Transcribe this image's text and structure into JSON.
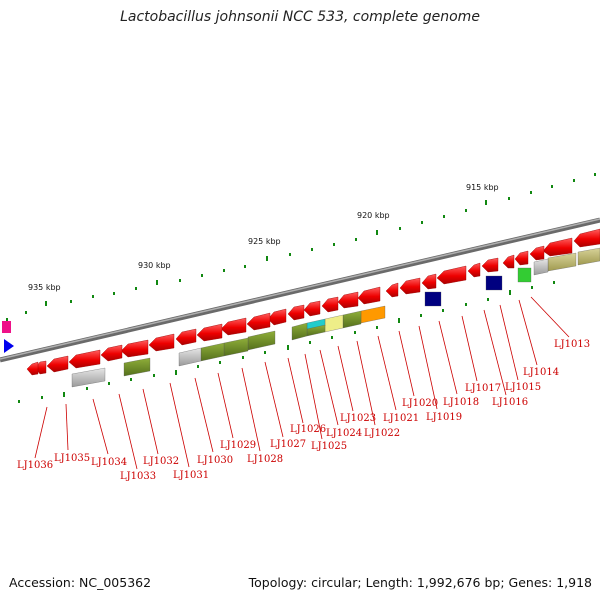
{
  "title": "Lactobacillus johnsonii NCC 533, complete genome",
  "footer": {
    "accession": "Accession: NC_005362",
    "topology": "Topology: circular; Length: 1,992,676 bp; Genes: 1,918"
  },
  "scale_ticks": [
    "915 kbp",
    "920 kbp",
    "925 kbp",
    "930 kbp",
    "935 kbp"
  ],
  "gene_labels": [
    "LJ1013",
    "LJ1014",
    "LJ1015",
    "LJ1016",
    "LJ1017",
    "LJ1018",
    "LJ1019",
    "LJ1020",
    "LJ1021",
    "LJ1022",
    "LJ1023",
    "LJ1024",
    "LJ1025",
    "LJ1026",
    "LJ1027",
    "LJ1028",
    "LJ1029",
    "LJ1030",
    "LJ1031",
    "LJ1032",
    "LJ1033",
    "LJ1034",
    "LJ1035",
    "LJ1036"
  ],
  "colors": {
    "backbone": "#8a8a8a",
    "gene_arrow": "#ee0000",
    "label": "#cc0000",
    "tick": "#118811",
    "olive": "#6b8e23",
    "khaki": "#bdb76b",
    "grey_feature": "#b8b8b8",
    "navy": "#000080",
    "cyan": "#22cccc",
    "yellow": "#eeee88",
    "orange": "#ff9900",
    "green": "#33cc33",
    "magenta": "#ee1188",
    "blue": "#0000ee"
  }
}
